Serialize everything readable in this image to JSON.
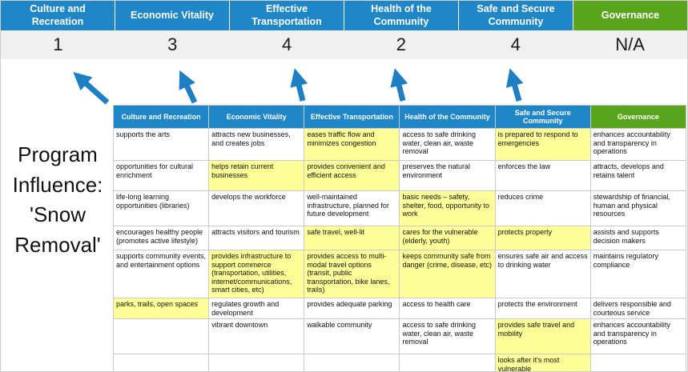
{
  "title": "Program Influence: 'Snow Removal'",
  "pillars": [
    {
      "label": "Culture and Recreation",
      "score": "1",
      "theme": "blue"
    },
    {
      "label": "Economic Vitality",
      "score": "3",
      "theme": "blue"
    },
    {
      "label": "Effective Transportation",
      "score": "4",
      "theme": "blue"
    },
    {
      "label": "Health of the Community",
      "score": "2",
      "theme": "blue"
    },
    {
      "label": "Safe and Secure Community",
      "score": "4",
      "theme": "blue"
    },
    {
      "label": "Governance",
      "score": "N/A",
      "theme": "green"
    }
  ],
  "colors": {
    "pillar_blue": "#1F86C8",
    "pillar_green": "#5AA51E",
    "score_band_gray": "#F0F0F0",
    "highlight_yellow": "#FFFF99",
    "arrow_blue": "#1F7FC4"
  },
  "matrix": {
    "rows": [
      [
        {
          "text": "supports the arts",
          "hl": false
        },
        {
          "text": "attracts new businesses, and creates jobs",
          "hl": false
        },
        {
          "text": "eases traffic flow and minimizes congestion",
          "hl": true
        },
        {
          "text": "access to safe drinking water, clean air, waste removal",
          "hl": false
        },
        {
          "text": "is prepared to respond to emergencies",
          "hl": true
        },
        {
          "text": "enhances accountability and transparency in operations",
          "hl": false
        }
      ],
      [
        {
          "text": "opportunities for cultural enrichment",
          "hl": false
        },
        {
          "text": "helps retain current businesses",
          "hl": true
        },
        {
          "text": "provides convenient and efficient access",
          "hl": true
        },
        {
          "text": "preserves the natural environment",
          "hl": false
        },
        {
          "text": "enforces the law",
          "hl": false
        },
        {
          "text": "attracts, develops and retains talent",
          "hl": false
        }
      ],
      [
        {
          "text": "life-long learning opportunities (libraries)",
          "hl": false
        },
        {
          "text": "develops the workforce",
          "hl": false
        },
        {
          "text": "well-maintained infrastructure, planned for future development",
          "hl": false
        },
        {
          "text": "basic needs – safety, shelter, food, opportunity to work",
          "hl": true
        },
        {
          "text": "reduces crime",
          "hl": false
        },
        {
          "text": "stewardship of financial, human and physical resources",
          "hl": false
        }
      ],
      [
        {
          "text": "encourages healthy people (promotes active lifestyle)",
          "hl": false
        },
        {
          "text": "attracts visitors and tourism",
          "hl": false
        },
        {
          "text": "safe travel, well-lit",
          "hl": true
        },
        {
          "text": "cares for the vulnerable (elderly, youth)",
          "hl": true
        },
        {
          "text": "protects property",
          "hl": true
        },
        {
          "text": "assists and supports decision makers",
          "hl": false
        }
      ],
      [
        {
          "text": "supports community events, and entertainment options",
          "hl": false
        },
        {
          "text": "provides infrastructure to support commerce (transportation, utilities, internet/communications, smart cities, etc)",
          "hl": true
        },
        {
          "text": "provides access to multi-modal travel options (transit, public transportation, bike lanes, trails)",
          "hl": true
        },
        {
          "text": "keeps community safe from danger (crime, disease, etc)",
          "hl": true
        },
        {
          "text": "ensures safe air and access to drinking water",
          "hl": false
        },
        {
          "text": "maintains regulatory compliance",
          "hl": false
        }
      ],
      [
        {
          "text": "parks, trails, open spaces",
          "hl": true
        },
        {
          "text": "regulates growth and development",
          "hl": false
        },
        {
          "text": "provides adequate parking",
          "hl": false
        },
        {
          "text": "access to health care",
          "hl": false
        },
        {
          "text": "protects the environment",
          "hl": false
        },
        {
          "text": "delivers responsible and courteous service",
          "hl": false
        }
      ],
      [
        {
          "text": "",
          "hl": false
        },
        {
          "text": "vibrant downtown",
          "hl": false
        },
        {
          "text": "walkable community",
          "hl": false
        },
        {
          "text": "access to safe drinking water, clean air, waste removal",
          "hl": false
        },
        {
          "text": "provides safe travel and mobility",
          "hl": true
        },
        {
          "text": "enhances accountability and transparency in operations",
          "hl": false
        }
      ],
      [
        {
          "text": "",
          "hl": false
        },
        {
          "text": "",
          "hl": false
        },
        {
          "text": "",
          "hl": false
        },
        {
          "text": "",
          "hl": false
        },
        {
          "text": "looks after it's most vulnerable",
          "hl": true
        },
        {
          "text": "",
          "hl": false
        }
      ]
    ]
  }
}
